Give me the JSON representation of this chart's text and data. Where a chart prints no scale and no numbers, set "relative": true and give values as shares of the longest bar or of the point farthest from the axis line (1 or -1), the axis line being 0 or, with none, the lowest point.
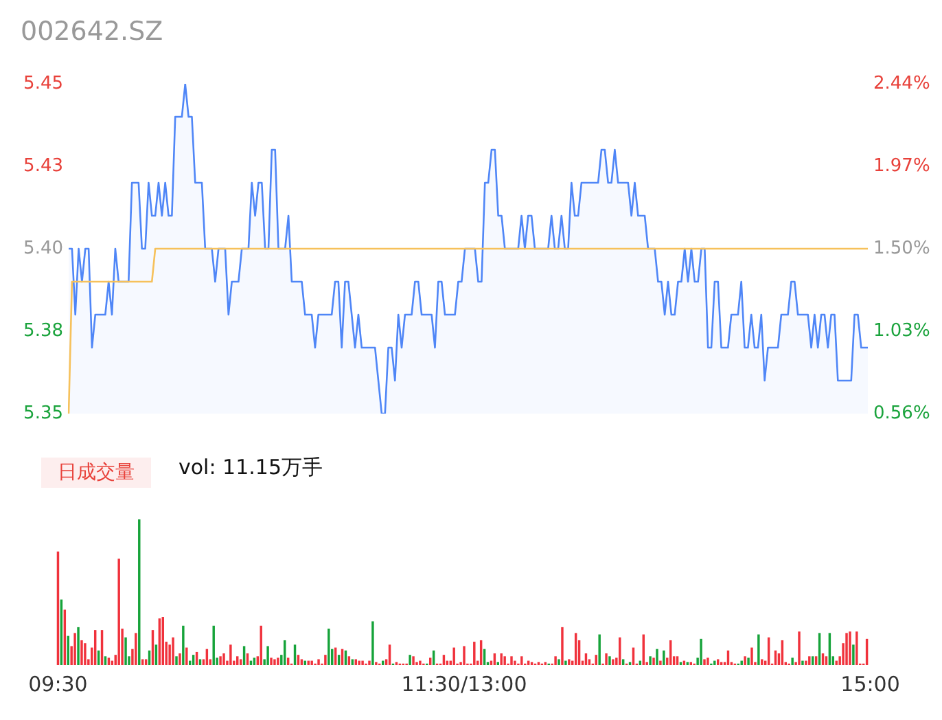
{
  "chart_data": [
    {
      "type": "line",
      "title": "002642.SZ",
      "marker": "none",
      "grid": false,
      "tick_labels": "y",
      "categories": [
        null,
        null,
        null,
        null,
        null,
        null,
        null,
        null,
        null,
        null,
        null,
        null,
        null,
        null,
        null,
        null,
        null,
        null,
        null,
        null,
        null,
        null,
        null,
        null,
        null,
        null,
        null,
        null,
        null,
        null,
        null,
        null,
        null,
        null,
        null,
        null,
        null,
        null,
        null,
        null,
        null,
        null,
        null,
        null,
        null,
        null,
        null,
        null,
        null,
        null,
        null,
        null,
        null,
        null,
        null,
        null,
        null,
        null,
        null,
        null,
        null,
        null,
        null,
        null,
        null,
        null,
        null,
        null,
        null,
        null,
        null,
        null,
        null,
        null,
        null,
        null,
        null,
        null,
        null,
        null,
        null,
        null,
        null,
        null,
        null,
        null,
        null,
        null,
        null,
        null,
        null,
        null,
        null,
        null,
        null,
        null,
        null,
        null,
        null,
        null,
        null,
        null,
        null,
        null,
        null,
        null,
        null,
        null,
        null,
        null,
        null,
        null,
        null,
        null,
        null,
        null,
        null,
        null,
        null,
        null,
        null,
        null,
        null,
        null,
        null,
        null,
        null,
        null,
        null,
        null,
        null,
        null,
        null,
        null,
        null,
        null,
        null,
        null,
        null,
        null,
        null,
        null,
        null,
        null,
        null,
        null,
        null,
        null,
        null,
        null,
        null,
        null,
        null,
        null,
        null,
        null,
        null,
        null,
        null,
        null,
        null,
        null,
        null,
        null,
        null,
        null,
        null,
        null,
        null,
        null,
        null,
        null,
        null,
        null,
        null,
        null,
        null,
        null,
        null,
        null,
        null,
        null,
        null,
        null,
        null,
        null,
        null,
        null,
        null,
        null,
        null,
        null,
        null,
        null,
        null,
        null,
        null,
        null,
        null,
        null,
        null,
        null,
        null,
        null,
        null,
        null,
        null,
        null,
        null,
        null,
        null,
        null,
        null,
        null,
        null,
        null,
        null,
        null,
        null,
        null,
        null,
        null,
        null,
        null,
        null,
        null,
        null,
        null,
        null,
        null,
        null,
        null,
        null,
        null,
        null,
        null,
        null,
        null,
        null,
        null,
        null
      ],
      "ylim": [
        5.35,
        5.45
      ],
      "yticks": [
        {
          "value": 5.35,
          "label": "5.35"
        },
        {
          "value": 5.375,
          "label": "5.38"
        },
        {
          "value": 5.4,
          "label": "5.40"
        },
        {
          "value": 5.425,
          "label": "5.43"
        },
        {
          "value": 5.45,
          "label": "5.45"
        }
      ],
      "y2lim": [
        0.56,
        2.44
      ],
      "y2ticks": [
        {
          "value": 0.56,
          "label": "0.56%"
        },
        {
          "value": 1.03,
          "label": "1.03%"
        },
        {
          "value": 1.5,
          "label": "1.50%"
        },
        {
          "value": 1.97,
          "label": "1.97%"
        },
        {
          "value": 2.44,
          "label": "2.44%"
        }
      ],
      "series": [
        {
          "type": "area",
          "color": "#4f86f7",
          "values": [
            5.4,
            5.4,
            5.38,
            5.4,
            5.39,
            5.4,
            5.4,
            5.37,
            5.38,
            5.38,
            5.38,
            5.38,
            5.39,
            5.38,
            5.4,
            5.39,
            5.39,
            5.39,
            5.39,
            5.42,
            5.42,
            5.42,
            5.4,
            5.4,
            5.42,
            5.41,
            5.41,
            5.42,
            5.41,
            5.42,
            5.41,
            5.41,
            5.44,
            5.44,
            5.44,
            5.45,
            5.44,
            5.44,
            5.42,
            5.42,
            5.42,
            5.4,
            5.4,
            5.4,
            5.39,
            5.4,
            5.4,
            5.4,
            5.38,
            5.39,
            5.39,
            5.39,
            5.4,
            5.4,
            5.4,
            5.42,
            5.41,
            5.42,
            5.42,
            5.4,
            5.4,
            5.43,
            5.43,
            5.4,
            5.4,
            5.4,
            5.41,
            5.39,
            5.39,
            5.39,
            5.39,
            5.38,
            5.38,
            5.38,
            5.37,
            5.38,
            5.38,
            5.38,
            5.38,
            5.38,
            5.39,
            5.39,
            5.37,
            5.39,
            5.39,
            5.38,
            5.37,
            5.38,
            5.37,
            5.37,
            5.37,
            5.37,
            5.37,
            5.36,
            5.35,
            5.35,
            5.37,
            5.37,
            5.36,
            5.38,
            5.37,
            5.38,
            5.38,
            5.38,
            5.39,
            5.39,
            5.38,
            5.38,
            5.38,
            5.38,
            5.37,
            5.39,
            5.39,
            5.38,
            5.38,
            5.38,
            5.38,
            5.39,
            5.39,
            5.4,
            5.4,
            5.4,
            5.4,
            5.39,
            5.39,
            5.42,
            5.42,
            5.43,
            5.43,
            5.41,
            5.41,
            5.4,
            5.4,
            5.4,
            5.4,
            5.4,
            5.41,
            5.4,
            5.41,
            5.41,
            5.4,
            5.4,
            5.4,
            5.4,
            5.4,
            5.41,
            5.4,
            5.4,
            5.41,
            5.4,
            5.4,
            5.42,
            5.41,
            5.41,
            5.42,
            5.42,
            5.42,
            5.42,
            5.42,
            5.42,
            5.43,
            5.43,
            5.42,
            5.42,
            5.43,
            5.42,
            5.42,
            5.42,
            5.42,
            5.41,
            5.42,
            5.41,
            5.41,
            5.41,
            5.4,
            5.4,
            5.4,
            5.39,
            5.39,
            5.38,
            5.39,
            5.38,
            5.38,
            5.39,
            5.39,
            5.4,
            5.39,
            5.4,
            5.39,
            5.39,
            5.4,
            5.4,
            5.37,
            5.37,
            5.39,
            5.39,
            5.37,
            5.37,
            5.37,
            5.38,
            5.38,
            5.38,
            5.39,
            5.37,
            5.37,
            5.38,
            5.37,
            5.37,
            5.38,
            5.36,
            5.37,
            5.37,
            5.37,
            5.37,
            5.38,
            5.38,
            5.38,
            5.39,
            5.39,
            5.38,
            5.38,
            5.38,
            5.38,
            5.37,
            5.38,
            5.37,
            5.38,
            5.38,
            5.37,
            5.38,
            5.38,
            5.36,
            5.36,
            5.36,
            5.36,
            5.36,
            5.38,
            5.38,
            5.37,
            5.37,
            5.37
          ]
        },
        {
          "type": "line",
          "color": "#f6c15b",
          "values": [
            5.35,
            5.39,
            5.39,
            5.39,
            5.39,
            5.39,
            5.39,
            5.39,
            5.39,
            5.39,
            5.39,
            5.39,
            5.39,
            5.39,
            5.39,
            5.39,
            5.39,
            5.39,
            5.39,
            5.39,
            5.39,
            5.39,
            5.39,
            5.39,
            5.39,
            5.39,
            5.4,
            5.4,
            5.4,
            5.4,
            5.4,
            5.4,
            5.4,
            5.4,
            5.4,
            5.4,
            5.4,
            5.4,
            5.4,
            5.4,
            5.4,
            5.4,
            5.4,
            5.4,
            5.4,
            5.4,
            5.4,
            5.4,
            5.4,
            5.4,
            5.4,
            5.4,
            5.4,
            5.4,
            5.4,
            5.4,
            5.4,
            5.4,
            5.4,
            5.4,
            5.4,
            5.4,
            5.4,
            5.4,
            5.4,
            5.4,
            5.4,
            5.4,
            5.4,
            5.4,
            5.4,
            5.4,
            5.4,
            5.4,
            5.4,
            5.4,
            5.4,
            5.4,
            5.4,
            5.4,
            5.4,
            5.4,
            5.4,
            5.4,
            5.4,
            5.4,
            5.4,
            5.4,
            5.4,
            5.4,
            5.4,
            5.4,
            5.4,
            5.4,
            5.4,
            5.4,
            5.4,
            5.4,
            5.4,
            5.4,
            5.4,
            5.4,
            5.4,
            5.4,
            5.4,
            5.4,
            5.4,
            5.4,
            5.4,
            5.4,
            5.4,
            5.4,
            5.4,
            5.4,
            5.4,
            5.4,
            5.4,
            5.4,
            5.4,
            5.4,
            5.4,
            5.4,
            5.4,
            5.4,
            5.4,
            5.4,
            5.4,
            5.4,
            5.4,
            5.4,
            5.4,
            5.4,
            5.4,
            5.4,
            5.4,
            5.4,
            5.4,
            5.4,
            5.4,
            5.4,
            5.4,
            5.4,
            5.4,
            5.4,
            5.4,
            5.4,
            5.4,
            5.4,
            5.4,
            5.4,
            5.4,
            5.4,
            5.4,
            5.4,
            5.4,
            5.4,
            5.4,
            5.4,
            5.4,
            5.4,
            5.4,
            5.4,
            5.4,
            5.4,
            5.4,
            5.4,
            5.4,
            5.4,
            5.4,
            5.4,
            5.4,
            5.4,
            5.4,
            5.4,
            5.4,
            5.4,
            5.4,
            5.4,
            5.4,
            5.4,
            5.4,
            5.4,
            5.4,
            5.4,
            5.4,
            5.4,
            5.4,
            5.4,
            5.4,
            5.4,
            5.4,
            5.4,
            5.4,
            5.4,
            5.4,
            5.4,
            5.4,
            5.4,
            5.4,
            5.4,
            5.4,
            5.4,
            5.4,
            5.4,
            5.4,
            5.4,
            5.4,
            5.4,
            5.4,
            5.4,
            5.4,
            5.4,
            5.4,
            5.4,
            5.4,
            5.4,
            5.4,
            5.4,
            5.4,
            5.4,
            5.4,
            5.4,
            5.4,
            5.4,
            5.4,
            5.4,
            5.4,
            5.4,
            5.4,
            5.4,
            5.4,
            5.4,
            5.4,
            5.4,
            5.4,
            5.4,
            5.4,
            5.4,
            5.4,
            5.4,
            5.4
          ]
        }
      ]
    },
    {
      "type": "bar",
      "relative": true,
      "grid": false,
      "tick_labels": "x",
      "annotations": [
        "日成交量",
        "vol: 11.15万手"
      ],
      "categories": [
        "09:30",
        null,
        null,
        null,
        null,
        null,
        null,
        null,
        null,
        null,
        null,
        null,
        null,
        null,
        null,
        null,
        null,
        null,
        null,
        null,
        null,
        null,
        null,
        null,
        null,
        null,
        null,
        null,
        null,
        null,
        null,
        null,
        null,
        null,
        null,
        null,
        null,
        null,
        null,
        null,
        null,
        null,
        null,
        null,
        null,
        null,
        null,
        null,
        null,
        null,
        null,
        null,
        null,
        null,
        null,
        null,
        null,
        null,
        null,
        null,
        null,
        null,
        null,
        null,
        null,
        null,
        null,
        null,
        null,
        null,
        null,
        null,
        null,
        null,
        null,
        null,
        null,
        null,
        null,
        null,
        null,
        null,
        null,
        null,
        null,
        null,
        null,
        null,
        null,
        null,
        null,
        null,
        null,
        null,
        null,
        null,
        null,
        null,
        null,
        null,
        null,
        null,
        null,
        null,
        null,
        null,
        null,
        null,
        null,
        null,
        null,
        null,
        null,
        null,
        null,
        null,
        null,
        null,
        null,
        null,
        "11:30/13:00",
        null,
        null,
        null,
        null,
        null,
        null,
        null,
        null,
        null,
        null,
        null,
        null,
        null,
        null,
        null,
        null,
        null,
        null,
        null,
        null,
        null,
        null,
        null,
        null,
        null,
        null,
        null,
        null,
        null,
        null,
        null,
        null,
        null,
        null,
        null,
        null,
        null,
        null,
        null,
        null,
        null,
        null,
        null,
        null,
        null,
        null,
        null,
        null,
        null,
        null,
        null,
        null,
        null,
        null,
        null,
        null,
        null,
        null,
        null,
        null,
        null,
        null,
        null,
        null,
        null,
        null,
        null,
        null,
        null,
        null,
        null,
        null,
        null,
        null,
        null,
        null,
        null,
        null,
        null,
        null,
        null,
        null,
        null,
        null,
        null,
        null,
        null,
        null,
        null,
        null,
        null,
        null,
        null,
        null,
        null,
        null,
        null,
        null,
        null,
        null,
        null,
        null,
        null,
        null,
        null,
        null,
        null,
        null,
        null,
        null,
        null,
        null,
        null,
        null,
        null,
        null,
        null,
        null,
        null,
        "15:00"
      ],
      "series": [
        {
          "color": "#f0323c",
          "values": [
            0.78,
            null,
            0.38,
            null,
            0.13,
            0.22,
            null,
            0.17,
            0.15,
            0.04,
            0.12,
            0.24,
            null,
            0.24,
            null,
            0.05,
            0.03,
            0.07,
            0.73,
            0.25,
            null,
            null,
            0.11,
            0.22,
            null,
            0.04,
            0.04,
            null,
            0.24,
            null,
            0.32,
            0.33,
            0.16,
            0.14,
            0.19,
            null,
            0.08,
            null,
            0.12,
            null,
            null,
            0.09,
            null,
            0.04,
            0.11,
            0.04,
            null,
            null,
            0.06,
            0.08,
            0.03,
            0.14,
            0.03,
            0.06,
            0.04,
            null,
            0.08,
            null,
            null,
            0.06,
            0.27,
            null,
            null,
            0.05,
            0.04,
            0.05,
            null,
            null,
            0.05,
            0.01,
            null,
            0.07,
            0.04,
            null,
            0.03,
            0.03,
            0.01,
            0.04,
            0.01,
            0.07,
            null,
            null,
            0.12,
            null,
            0.11,
            null,
            0.06,
            null,
            0.04,
            0.03,
            0.03,
            0.01,
            0.03,
            null,
            0.02,
            0.01,
            null,
            0.04,
            0.14,
            null,
            0.02,
            0.01,
            0.01,
            0.01,
            null,
            0.06,
            0.02,
            0.03,
            0.01,
            null,
            0.05,
            null,
            0.01,
            0.01,
            0.07,
            0.03,
            0.03,
            0.12,
            0.01,
            0.02,
            0.13,
            0.01,
            0.01,
            0.16,
            0.03,
            0.17,
            null,
            null,
            0.03,
            0.08,
            null,
            0.08,
            0.06,
            0.01,
            0.06,
            0.03,
            0.01,
            0.06,
            0.01,
            0.03,
            0.02,
            0.01,
            0.02,
            0.01,
            0.02,
            null,
            0.01,
            0.06,
            null,
            0.26,
            null,
            0.04,
            0.03,
            0.22,
            0.17,
            0.03,
            0.08,
            0.04,
            0.01,
            0.07,
            null,
            0.01,
            0.08,
            null,
            0.04,
            0.05,
            0.19,
            null,
            0.01,
            null,
            0.12,
            0.01,
            null,
            0.21,
            0.02,
            null,
            0.05,
            null,
            0.03,
            null,
            0.05,
            0.17,
            0.06,
            0.06,
            null,
            0.03,
            null,
            0.02,
            0.01,
            null,
            null,
            0.04,
            0.05,
            null,
            null,
            0.04,
            0.02,
            0.02,
            0.1,
            0.02,
            0.01,
            null,
            null,
            0.06,
            null,
            0.12,
            0.02,
            null,
            0.04,
            0.03,
            0.19,
            0.01,
            0.1,
            0.08,
            0.17,
            0.02,
            0.01,
            null,
            0.02,
            0.23,
            null,
            0.03,
            0.06,
            null,
            0.06,
            null,
            0.08,
            0.06,
            null,
            null,
            0.03,
            0.06,
            0.15,
            0.22,
            0.23,
            null,
            0.23,
            0.01,
            0.01,
            0.18,
            null
          ]
        },
        {
          "color": "#16a33a",
          "values": [
            null,
            0.45,
            null,
            0.2,
            null,
            null,
            0.26,
            null,
            null,
            null,
            null,
            null,
            0.1,
            null,
            0.06,
            null,
            null,
            null,
            null,
            null,
            0.19,
            0.06,
            null,
            null,
            1.0,
            null,
            null,
            0.1,
            null,
            0.14,
            null,
            null,
            null,
            null,
            null,
            0.06,
            null,
            0.27,
            null,
            0.03,
            0.07,
            null,
            0.04,
            null,
            null,
            null,
            0.27,
            0.05,
            null,
            null,
            null,
            null,
            null,
            null,
            null,
            0.13,
            null,
            0.03,
            0.05,
            null,
            null,
            0.04,
            0.13,
            null,
            null,
            null,
            0.07,
            0.17,
            null,
            null,
            0.14,
            null,
            null,
            0.03,
            null,
            null,
            null,
            null,
            null,
            null,
            0.25,
            0.11,
            null,
            0.07,
            null,
            0.1,
            null,
            0.04,
            null,
            null,
            null,
            null,
            null,
            0.3,
            null,
            null,
            0.03,
            null,
            null,
            0.01,
            null,
            null,
            null,
            null,
            0.07,
            null,
            null,
            null,
            null,
            0.01,
            null,
            0.1,
            null,
            null,
            null,
            null,
            null,
            null,
            null,
            null,
            null,
            null,
            null,
            null,
            null,
            null,
            0.11,
            0.02,
            null,
            null,
            0.02,
            null,
            null,
            null,
            null,
            null,
            null,
            null,
            null,
            null,
            null,
            null,
            null,
            null,
            null,
            0.01,
            null,
            null,
            0.04,
            null,
            0.03,
            null,
            null,
            null,
            null,
            null,
            null,
            null,
            null,
            null,
            0.21,
            null,
            null,
            0.06,
            null,
            null,
            null,
            0.04,
            null,
            0.02,
            null,
            null,
            0.03,
            null,
            null,
            0.06,
            null,
            0.11,
            null,
            0.1,
            null,
            null,
            null,
            null,
            0.02,
            null,
            0.02,
            null,
            null,
            0.05,
            0.18,
            null,
            null,
            0.01,
            0.03,
            null,
            null,
            null,
            null,
            null,
            null,
            0.01,
            0.03,
            null,
            0.05,
            null,
            null,
            0.21,
            null,
            null,
            null,
            null,
            null,
            null,
            null,
            null,
            null,
            0.05,
            null,
            null,
            0.03,
            null,
            null,
            0.06,
            null,
            0.22,
            null,
            null,
            0.22,
            0.06,
            null,
            null,
            null,
            null,
            null,
            0.14,
            null,
            null,
            null,
            null,
            null
          ]
        }
      ]
    }
  ]
}
